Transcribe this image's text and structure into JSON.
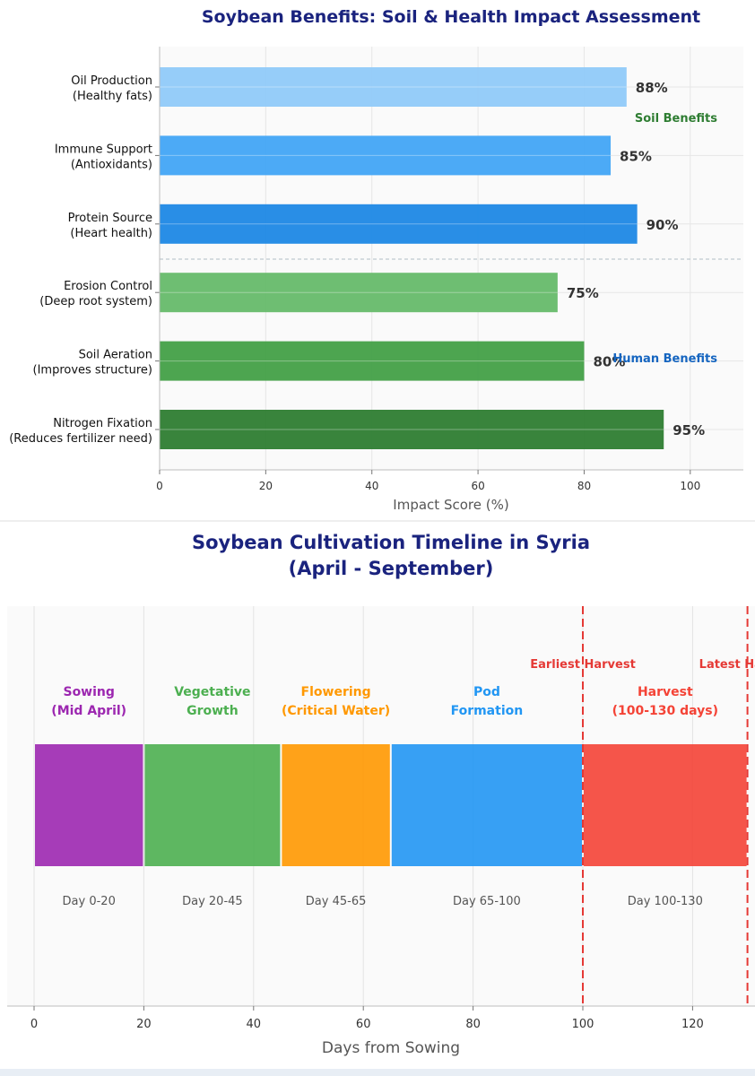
{
  "chart_data": [
    {
      "type": "bar",
      "orientation": "horizontal",
      "title": "Soybean Benefits: Soil & Health Impact Assessment",
      "xlabel": "Impact Score (%)",
      "xlim": [
        0,
        110
      ],
      "xticks": [
        0,
        20,
        40,
        60,
        80,
        100
      ],
      "grid": true,
      "categories": [
        [
          "Oil Production",
          "(Healthy fats)"
        ],
        [
          "Immune Support",
          "(Antioxidants)"
        ],
        [
          "Protein Source",
          "(Heart health)"
        ],
        [
          "Erosion Control",
          "(Deep root system)"
        ],
        [
          "Soil Aeration",
          "(Improves structure)"
        ],
        [
          "Nitrogen Fixation",
          "(Reduces fertilizer need)"
        ]
      ],
      "values": [
        88,
        85,
        90,
        75,
        80,
        95
      ],
      "value_labels": [
        "88%",
        "85%",
        "90%",
        "75%",
        "80%",
        "95%"
      ],
      "colors": [
        "#90caf9",
        "#42a5f5",
        "#1e88e5",
        "#66bb6a",
        "#43a047",
        "#2e7d32"
      ],
      "annotations": [
        {
          "text": "Soil Benefits",
          "color": "#2e7d32"
        },
        {
          "text": "Human Benefits",
          "color": "#1565c0"
        }
      ]
    },
    {
      "type": "timeline",
      "title": [
        "Soybean Cultivation Timeline in Syria",
        "(April - September)"
      ],
      "xlabel": "Days from Sowing",
      "xlim": [
        -5,
        133
      ],
      "xticks": [
        0,
        20,
        40,
        60,
        80,
        100,
        120
      ],
      "grid": true,
      "stages": [
        {
          "label": [
            "Sowing",
            "(Mid April)"
          ],
          "start": 0,
          "end": 20,
          "range": "Day 0-20",
          "color": "#9c27b0"
        },
        {
          "label": [
            "Vegetative",
            "Growth"
          ],
          "start": 20,
          "end": 45,
          "range": "Day 20-45",
          "color": "#4caf50"
        },
        {
          "label": [
            "Flowering",
            "(Critical Water)"
          ],
          "start": 45,
          "end": 65,
          "range": "Day 45-65",
          "color": "#ff9800"
        },
        {
          "label": [
            "Pod",
            "Formation"
          ],
          "start": 65,
          "end": 100,
          "range": "Day 65-100",
          "color": "#2196f3"
        },
        {
          "label": [
            "Harvest",
            "(100-130 days)"
          ],
          "start": 100,
          "end": 130,
          "range": "Day 100-130",
          "color": "#f44336"
        }
      ],
      "markers": [
        {
          "x": 100,
          "text": "Earliest Harvest",
          "color": "#e53935"
        },
        {
          "x": 130,
          "text": "Latest Harvest",
          "color": "#e53935"
        }
      ]
    }
  ]
}
